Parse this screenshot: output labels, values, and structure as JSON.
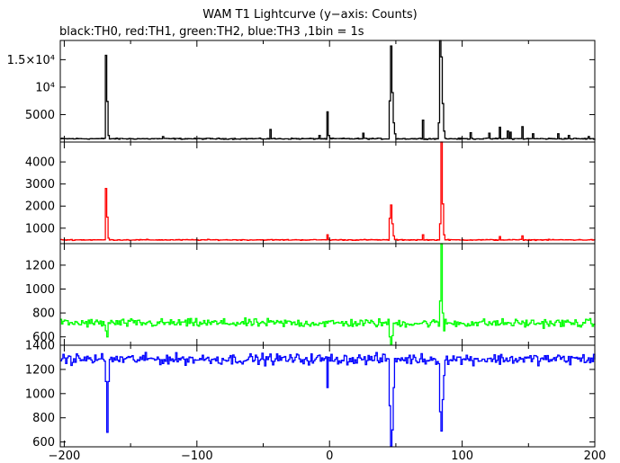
{
  "chart_data": {
    "type": "line",
    "title": "WAM T1 Lightcurve (y−axis: Counts)",
    "subtitle": "black:TH0, red:TH1, green:TH2, blue:TH3 ,1bin = 1s",
    "xlim": [
      -203,
      200
    ],
    "x_ticks": [
      -200,
      -100,
      0,
      100,
      200
    ],
    "x_tick_labels": [
      "−200",
      "−100",
      "0",
      "100",
      "200"
    ],
    "panels": [
      {
        "name": "TH0",
        "color": "#000000",
        "ylim": [
          0,
          18500
        ],
        "y_ticks": [
          5000,
          10000,
          15000
        ],
        "y_tick_labels": [
          "5000",
          "10⁴",
          "1.5×10⁴"
        ],
        "baseline": 600,
        "noise": 90,
        "features": [
          {
            "x": -169,
            "y": 15800
          },
          {
            "x": -168,
            "y": 7400
          },
          {
            "x": -167,
            "y": 1200
          },
          {
            "x": -126,
            "y": 1000
          },
          {
            "x": -45,
            "y": 2300
          },
          {
            "x": -8,
            "y": 1200
          },
          {
            "x": -2,
            "y": 5500
          },
          {
            "x": -1,
            "y": 1200
          },
          {
            "x": 25,
            "y": 1600
          },
          {
            "x": 45,
            "y": 7500
          },
          {
            "x": 46,
            "y": 17500
          },
          {
            "x": 47,
            "y": 9000
          },
          {
            "x": 48,
            "y": 3500
          },
          {
            "x": 49,
            "y": 1500
          },
          {
            "x": 70,
            "y": 4000
          },
          {
            "x": 82,
            "y": 3500
          },
          {
            "x": 83,
            "y": 18500
          },
          {
            "x": 84,
            "y": 15500
          },
          {
            "x": 85,
            "y": 7000
          },
          {
            "x": 86,
            "y": 2000
          },
          {
            "x": 106,
            "y": 1700
          },
          {
            "x": 120,
            "y": 1600
          },
          {
            "x": 128,
            "y": 2700
          },
          {
            "x": 134,
            "y": 2000
          },
          {
            "x": 136,
            "y": 1800
          },
          {
            "x": 145,
            "y": 2800
          },
          {
            "x": 153,
            "y": 1500
          },
          {
            "x": 172,
            "y": 1500
          },
          {
            "x": 180,
            "y": 1200
          },
          {
            "x": 195,
            "y": 1000
          }
        ]
      },
      {
        "name": "TH1",
        "color": "#ff0000",
        "ylim": [
          300,
          4900
        ],
        "y_ticks": [
          1000,
          2000,
          3000,
          4000
        ],
        "y_tick_labels": [
          "1000",
          "2000",
          "3000",
          "4000"
        ],
        "baseline": 470,
        "noise": 18,
        "features": [
          {
            "x": -169,
            "y": 2800
          },
          {
            "x": -168,
            "y": 1500
          },
          {
            "x": -167,
            "y": 550
          },
          {
            "x": -2,
            "y": 700
          },
          {
            "x": 45,
            "y": 1450
          },
          {
            "x": 46,
            "y": 2050
          },
          {
            "x": 47,
            "y": 1200
          },
          {
            "x": 48,
            "y": 650
          },
          {
            "x": 70,
            "y": 700
          },
          {
            "x": 83,
            "y": 1200
          },
          {
            "x": 84,
            "y": 4900
          },
          {
            "x": 85,
            "y": 2100
          },
          {
            "x": 86,
            "y": 700
          },
          {
            "x": 128,
            "y": 620
          },
          {
            "x": 145,
            "y": 650
          }
        ]
      },
      {
        "name": "TH2",
        "color": "#00ff00",
        "ylim": [
          530,
          1380
        ],
        "y_ticks": [
          600,
          800,
          1000,
          1200
        ],
        "y_tick_labels": [
          "600",
          "800",
          "1000",
          "1200"
        ],
        "baseline": 715,
        "noise": 30,
        "features": [
          {
            "x": -169,
            "y": 650
          },
          {
            "x": -168,
            "y": 600
          },
          {
            "x": 45,
            "y": 600
          },
          {
            "x": 46,
            "y": 540
          },
          {
            "x": 47,
            "y": 610
          },
          {
            "x": 83,
            "y": 900
          },
          {
            "x": 84,
            "y": 1380
          },
          {
            "x": 85,
            "y": 800
          },
          {
            "x": 86,
            "y": 650
          }
        ]
      },
      {
        "name": "TH3",
        "color": "#0000ff",
        "ylim": [
          560,
          1400
        ],
        "y_ticks": [
          600,
          800,
          1000,
          1200,
          1400
        ],
        "y_tick_labels": [
          "600",
          "800",
          "1000",
          "1200",
          "1400"
        ],
        "baseline": 1285,
        "noise": 38,
        "features": [
          {
            "x": -169,
            "y": 1100
          },
          {
            "x": -168,
            "y": 680
          },
          {
            "x": -167,
            "y": 1100
          },
          {
            "x": -2,
            "y": 1050
          },
          {
            "x": 45,
            "y": 900
          },
          {
            "x": 46,
            "y": 565
          },
          {
            "x": 47,
            "y": 700
          },
          {
            "x": 48,
            "y": 1050
          },
          {
            "x": 83,
            "y": 850
          },
          {
            "x": 84,
            "y": 690
          },
          {
            "x": 85,
            "y": 950
          },
          {
            "x": 86,
            "y": 1150
          }
        ]
      }
    ]
  }
}
